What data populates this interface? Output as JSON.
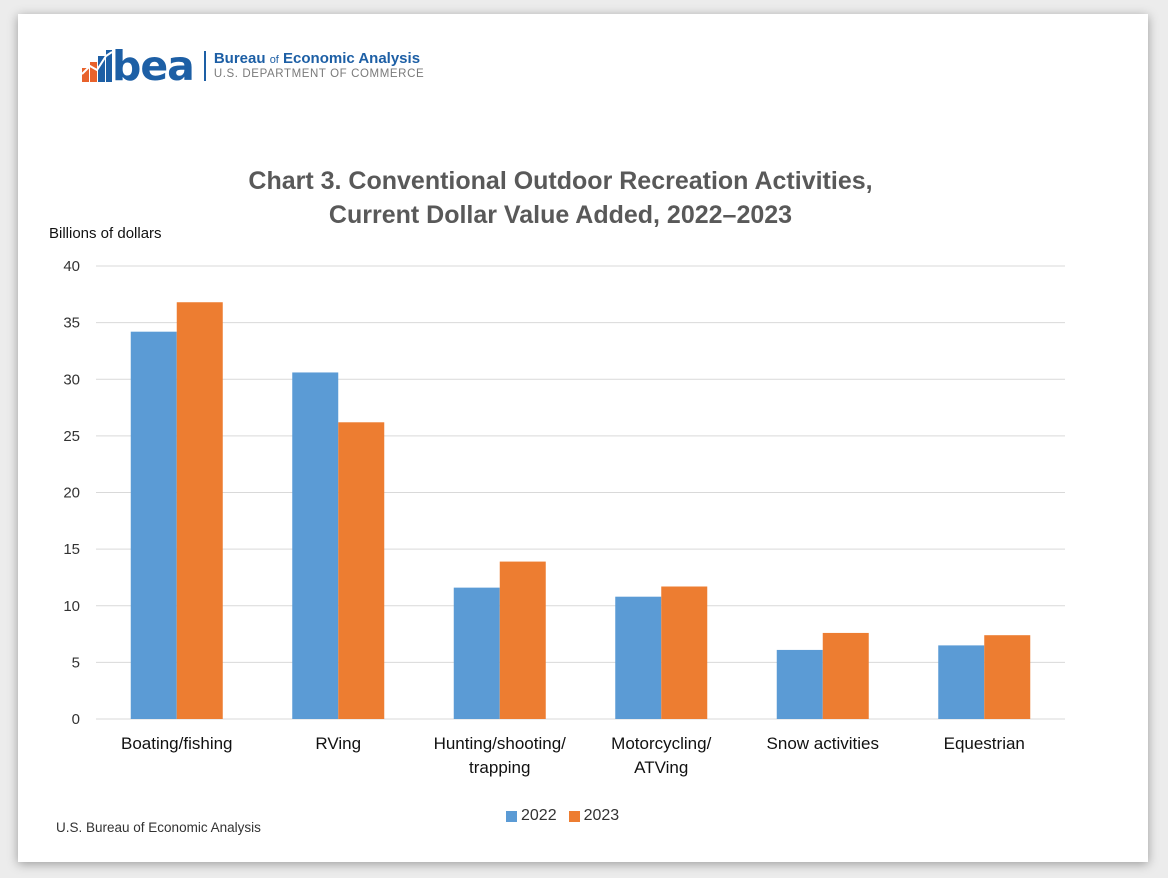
{
  "header": {
    "logo_word": "bea",
    "org_name_start": "Bureau ",
    "org_name_of": "of",
    "org_name_end": " Economic Analysis",
    "department": "U.S. DEPARTMENT OF COMMERCE",
    "logo_icon": "bea-chart-logo-icon"
  },
  "footer": {
    "source": "U.S. Bureau of Economic Analysis"
  },
  "colors": {
    "series_2022": "#5b9bd5",
    "series_2023": "#ed7d31",
    "grid": "#d9d9d9",
    "title": "#595959"
  },
  "chart_data": {
    "type": "bar",
    "title_line1": "Chart 3. Conventional Outdoor Recreation Activities,",
    "title_line2": "Current Dollar Value Added, 2022–2023",
    "ylabel": "Billions of dollars",
    "xlabel": "",
    "ylim": [
      0,
      40
    ],
    "yticks": [
      "0",
      "5",
      "10",
      "15",
      "20",
      "25",
      "30",
      "35",
      "40"
    ],
    "grid": true,
    "legend_position": "bottom",
    "categories": [
      [
        "Boating/fishing"
      ],
      [
        "RVing"
      ],
      [
        "Hunting/shooting/",
        "trapping"
      ],
      [
        "Motorcycling/",
        "ATVing"
      ],
      [
        "Snow activities"
      ],
      [
        "Equestrian"
      ]
    ],
    "series": [
      {
        "name": "2022",
        "values": [
          34.2,
          30.6,
          11.6,
          10.8,
          6.1,
          6.5
        ]
      },
      {
        "name": "2023",
        "values": [
          36.8,
          26.2,
          13.9,
          11.7,
          7.6,
          7.4
        ]
      }
    ]
  }
}
